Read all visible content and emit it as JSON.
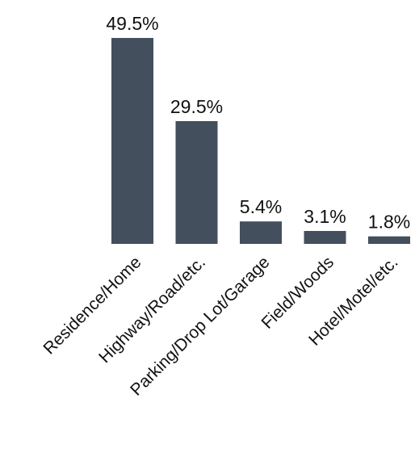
{
  "chart_data": {
    "type": "bar",
    "categories": [
      "Residence/Home",
      "Highway/Road/etc.",
      "Parking/Drop Lot/Garage",
      "Field/Woods",
      "Hotel/Motel/etc."
    ],
    "values": [
      49.5,
      29.5,
      5.4,
      3.1,
      1.8
    ],
    "value_labels": [
      "49.5%",
      "29.5%",
      "5.4%",
      "3.1%",
      "1.8%"
    ],
    "title": "",
    "xlabel": "",
    "ylabel": "",
    "ylim": [
      0,
      49.5
    ],
    "grid": false,
    "legend": "none",
    "bar_color": "#444f5d"
  }
}
